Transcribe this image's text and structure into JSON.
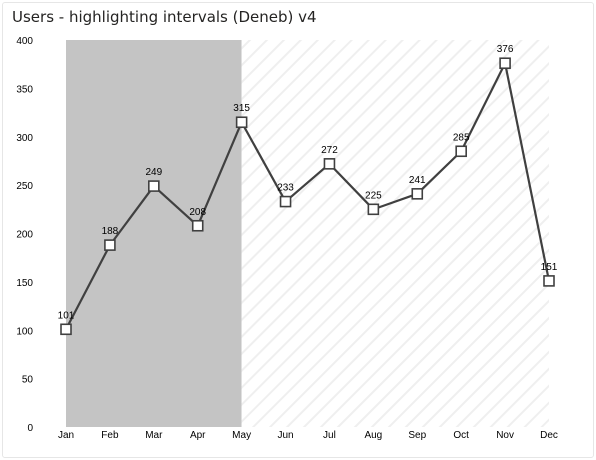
{
  "title": "Users - highlighting intervals (Deneb) v4",
  "chart_data": {
    "type": "line",
    "title": "Users - highlighting intervals (Deneb) v4",
    "xlabel": "",
    "ylabel": "",
    "categories": [
      "Jan",
      "Feb",
      "Mar",
      "Apr",
      "May",
      "Jun",
      "Jul",
      "Aug",
      "Sep",
      "Oct",
      "Nov",
      "Dec"
    ],
    "values": [
      101,
      188,
      249,
      208,
      315,
      233,
      272,
      225,
      241,
      285,
      376,
      151
    ],
    "ylim": [
      0,
      400
    ],
    "yticks": [
      0,
      50,
      100,
      150,
      200,
      250,
      300,
      350,
      400
    ],
    "grid": false,
    "highlight_intervals": [
      {
        "start": "Jan",
        "end": "May",
        "style": "solid-fill",
        "color": "#c4c4c4"
      },
      {
        "start": "May",
        "end": "Dec",
        "style": "diagonal-hatch",
        "color": "#f0f0f0"
      }
    ],
    "line_color": "#404040",
    "marker": "square",
    "data_labels": true
  }
}
